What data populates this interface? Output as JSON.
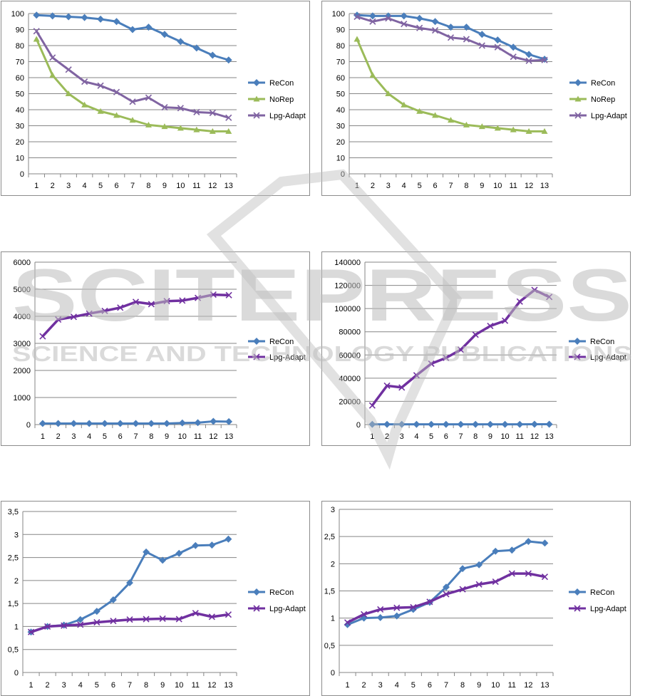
{
  "watermark": {
    "line1": "SCITEPRESS",
    "line2": "SCIENCE AND TECHNOLOGY PUBLICATIONS"
  },
  "colors": {
    "ReCon": "#4a7ebb",
    "NoRep": "#9bbb59",
    "Lpg-Adapt": "#8064a2",
    "Lpg-Adapt-thick": "#7030a0"
  },
  "chart_data": [
    {
      "type": "line",
      "categories": [
        "1",
        "2",
        "3",
        "4",
        "5",
        "6",
        "7",
        "8",
        "9",
        "10",
        "11",
        "12",
        "13"
      ],
      "ylim": [
        0,
        100
      ],
      "yticks": [
        "0",
        "10",
        "20",
        "30",
        "40",
        "50",
        "60",
        "70",
        "80",
        "90",
        "100"
      ],
      "series": [
        {
          "name": "ReCon",
          "values": [
            99,
            98.5,
            98,
            97.5,
            96.5,
            95,
            90,
            91.5,
            87,
            82.5,
            78.5,
            74,
            71
          ]
        },
        {
          "name": "NoRep",
          "values": [
            84,
            61.5,
            50,
            43,
            39,
            36.5,
            33.5,
            30.5,
            29.5,
            28.5,
            27.5,
            26.5,
            26.5
          ]
        },
        {
          "name": "Lpg-Adapt",
          "values": [
            89,
            72.5,
            65,
            57.5,
            55,
            51,
            45,
            47.5,
            41.5,
            41,
            38.5,
            38,
            35
          ]
        }
      ]
    },
    {
      "type": "line",
      "categories": [
        "1",
        "2",
        "3",
        "4",
        "5",
        "6",
        "7",
        "8",
        "9",
        "10",
        "11",
        "12",
        "13"
      ],
      "ylim": [
        0,
        100
      ],
      "yticks": [
        "0",
        "10",
        "20",
        "30",
        "40",
        "50",
        "60",
        "70",
        "80",
        "90",
        "100"
      ],
      "series": [
        {
          "name": "ReCon",
          "values": [
            99,
            98.5,
            98.5,
            98.5,
            97,
            95,
            91.5,
            91.5,
            87,
            83.5,
            79,
            74.5,
            71.5
          ]
        },
        {
          "name": "NoRep",
          "values": [
            84,
            61.5,
            50,
            43,
            39,
            36.5,
            33.5,
            30.5,
            29.5,
            28.5,
            27.5,
            26.5,
            26.5
          ]
        },
        {
          "name": "Lpg-Adapt",
          "values": [
            98,
            95,
            97,
            93.5,
            91,
            89.5,
            85,
            84,
            80,
            79,
            73,
            70.5,
            71
          ]
        }
      ]
    },
    {
      "type": "line",
      "categories": [
        "1",
        "2",
        "3",
        "4",
        "5",
        "6",
        "7",
        "8",
        "9",
        "10",
        "11",
        "12",
        "13"
      ],
      "ylim": [
        0,
        6000
      ],
      "yticks": [
        "0",
        "1000",
        "2000",
        "3000",
        "4000",
        "5000",
        "6000"
      ],
      "series": [
        {
          "name": "ReCon",
          "values": [
            40,
            40,
            40,
            40,
            40,
            40,
            40,
            40,
            40,
            60,
            70,
            120,
            110
          ]
        },
        {
          "name": "Lpg-Adapt",
          "values": [
            3260,
            3880,
            3980,
            4100,
            4200,
            4320,
            4530,
            4450,
            4560,
            4580,
            4680,
            4800,
            4780
          ]
        }
      ]
    },
    {
      "type": "line",
      "categories": [
        "1",
        "2",
        "3",
        "4",
        "5",
        "6",
        "7",
        "8",
        "9",
        "10",
        "11",
        "12",
        "13"
      ],
      "ylim": [
        0,
        140000
      ],
      "yticks": [
        "0",
        "20000",
        "40000",
        "60000",
        "80000",
        "100000",
        "120000",
        "140000"
      ],
      "series": [
        {
          "name": "ReCon",
          "values": [
            200,
            200,
            200,
            200,
            200,
            200,
            200,
            200,
            200,
            200,
            200,
            300,
            300
          ]
        },
        {
          "name": "Lpg-Adapt",
          "values": [
            16500,
            33500,
            32000,
            42500,
            52500,
            57500,
            64500,
            77500,
            85000,
            89500,
            106000,
            116000,
            110000
          ]
        }
      ]
    },
    {
      "type": "line",
      "categories": [
        "1",
        "2",
        "3",
        "4",
        "5",
        "6",
        "7",
        "8",
        "9",
        "10",
        "11",
        "12",
        "13"
      ],
      "ylim": [
        0,
        3.5
      ],
      "yticks": [
        "0",
        "0,5",
        "1",
        "1,5",
        "2",
        "2,5",
        "3",
        "3,5"
      ],
      "series": [
        {
          "name": "ReCon",
          "values": [
            0.88,
            1.0,
            1.03,
            1.15,
            1.33,
            1.58,
            1.95,
            2.62,
            2.44,
            2.59,
            2.76,
            2.77,
            2.9
          ]
        },
        {
          "name": "Lpg-Adapt",
          "values": [
            0.88,
            1.0,
            1.02,
            1.04,
            1.09,
            1.12,
            1.15,
            1.16,
            1.17,
            1.16,
            1.29,
            1.21,
            1.26
          ]
        }
      ]
    },
    {
      "type": "line",
      "categories": [
        "1",
        "2",
        "3",
        "4",
        "5",
        "6",
        "7",
        "8",
        "9",
        "10",
        "11",
        "12",
        "13"
      ],
      "ylim": [
        0,
        3
      ],
      "yticks": [
        "0",
        "0,5",
        "1",
        "1,5",
        "2",
        "2,5",
        "3"
      ],
      "series": [
        {
          "name": "ReCon",
          "values": [
            0.88,
            1.0,
            1.01,
            1.04,
            1.16,
            1.29,
            1.57,
            1.91,
            1.98,
            2.23,
            2.25,
            2.41,
            2.38
          ]
        },
        {
          "name": "Lpg-Adapt",
          "values": [
            0.92,
            1.07,
            1.16,
            1.19,
            1.2,
            1.3,
            1.44,
            1.53,
            1.62,
            1.67,
            1.82,
            1.82,
            1.76
          ]
        }
      ]
    }
  ]
}
